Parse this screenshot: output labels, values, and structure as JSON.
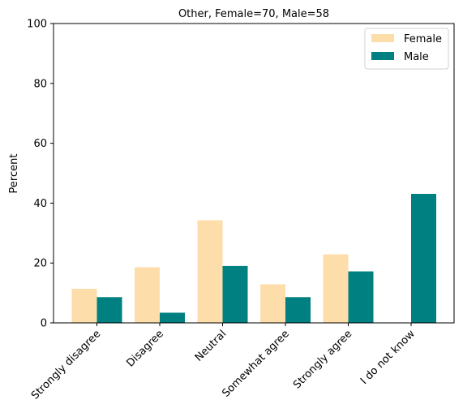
{
  "chart_data": {
    "type": "bar",
    "title": "Other, Female=70, Male=58",
    "xlabel": "",
    "ylabel": "Percent",
    "ylim": [
      0,
      100
    ],
    "yticks": [
      0,
      20,
      40,
      60,
      80,
      100
    ],
    "categories": [
      "Strongly disagree",
      "Disagree",
      "Neutral",
      "Somewhat agree",
      "Strongly agree",
      "I do not know"
    ],
    "series": [
      {
        "name": "Female",
        "color": "#fddeab",
        "values": [
          11.4,
          18.6,
          34.3,
          12.9,
          22.9,
          0
        ]
      },
      {
        "name": "Male",
        "color": "#008080",
        "values": [
          8.6,
          3.4,
          19.0,
          8.6,
          17.2,
          43.1
        ]
      }
    ],
    "legend_position": "top-right",
    "grid": false
  }
}
